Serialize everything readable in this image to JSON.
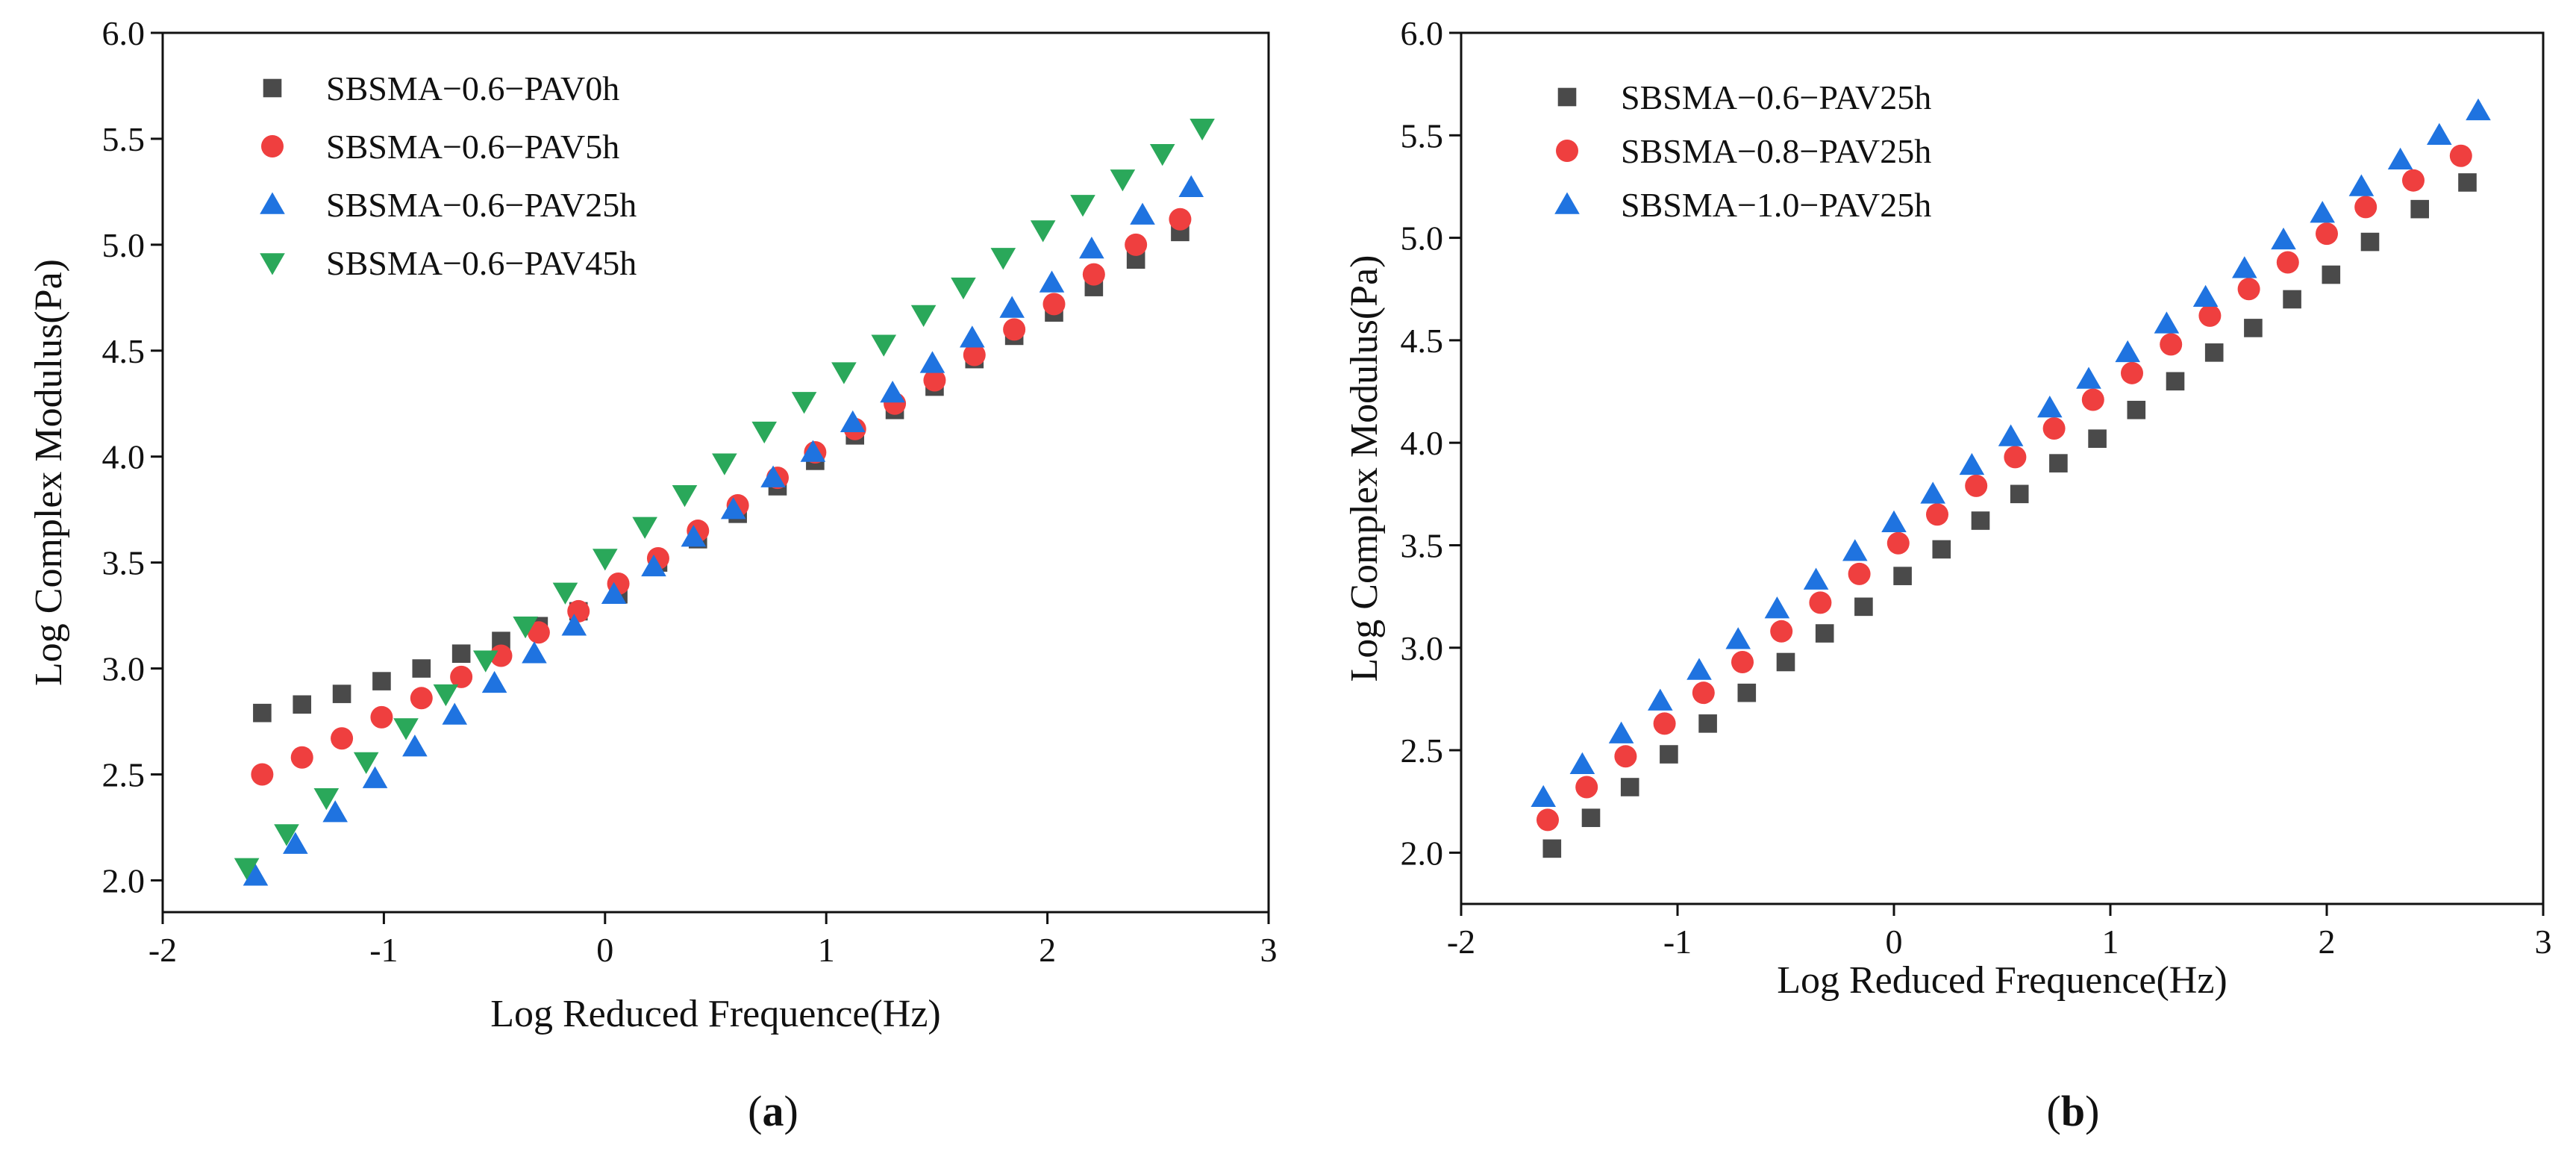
{
  "chart_data": [
    {
      "type": "scatter",
      "panel": "(a)",
      "panel_letter": "a",
      "xlabel": "Log Reduced Frequence(Hz)",
      "ylabel": "Log Complex Modulus(Pa)",
      "xlim": [
        -2,
        3
      ],
      "ylim": [
        1.85,
        6.0
      ],
      "xticks": [
        -2,
        -1,
        0,
        1,
        2,
        3
      ],
      "xtick_labels": [
        "-2",
        "-1",
        "0",
        "1",
        "2",
        "3"
      ],
      "yticks": [
        2.0,
        2.5,
        3.0,
        3.5,
        4.0,
        4.5,
        5.0,
        5.5,
        6.0
      ],
      "ytick_labels": [
        "2.0",
        "2.5",
        "3.0",
        "3.5",
        "4.0",
        "4.5",
        "5.0",
        "5.5",
        "6.0"
      ],
      "legend_position": "top-left",
      "series": [
        {
          "name": "SBSMA−0.6−PAV0h",
          "marker": "square",
          "color": "#4a4a4a",
          "x": [
            -1.55,
            -1.37,
            -1.19,
            -1.01,
            -0.83,
            -0.65,
            -0.47,
            -0.3,
            -0.12,
            0.06,
            0.24,
            0.42,
            0.6,
            0.78,
            0.95,
            1.13,
            1.31,
            1.49,
            1.67,
            1.85,
            2.03,
            2.21,
            2.4,
            2.6
          ],
          "y": [
            2.79,
            2.83,
            2.88,
            2.94,
            3.0,
            3.07,
            3.13,
            3.2,
            3.27,
            3.35,
            3.5,
            3.61,
            3.73,
            3.86,
            3.98,
            4.1,
            4.22,
            4.33,
            4.46,
            4.57,
            4.68,
            4.8,
            4.93,
            5.06
          ]
        },
        {
          "name": "SBSMA−0.6−PAV5h",
          "marker": "circle",
          "color": "#ef3f3f",
          "x": [
            -1.55,
            -1.37,
            -1.19,
            -1.01,
            -0.83,
            -0.65,
            -0.47,
            -0.3,
            -0.12,
            0.06,
            0.24,
            0.42,
            0.6,
            0.78,
            0.95,
            1.13,
            1.31,
            1.49,
            1.67,
            1.85,
            2.03,
            2.21,
            2.4,
            2.6
          ],
          "y": [
            2.5,
            2.58,
            2.67,
            2.77,
            2.86,
            2.96,
            3.06,
            3.17,
            3.27,
            3.4,
            3.52,
            3.65,
            3.77,
            3.9,
            4.02,
            4.13,
            4.25,
            4.36,
            4.48,
            4.6,
            4.72,
            4.86,
            5.0,
            5.12
          ]
        },
        {
          "name": "SBSMA−0.6−PAV25h",
          "marker": "triangle-up",
          "color": "#1f73e0",
          "x": [
            -1.58,
            -1.4,
            -1.22,
            -1.04,
            -0.86,
            -0.68,
            -0.5,
            -0.32,
            -0.14,
            0.04,
            0.22,
            0.4,
            0.58,
            0.76,
            0.94,
            1.12,
            1.3,
            1.48,
            1.66,
            1.84,
            2.02,
            2.2,
            2.43,
            2.65
          ],
          "y": [
            2.02,
            2.17,
            2.32,
            2.48,
            2.63,
            2.78,
            2.93,
            3.07,
            3.2,
            3.35,
            3.48,
            3.62,
            3.75,
            3.9,
            4.02,
            4.16,
            4.3,
            4.44,
            4.56,
            4.7,
            4.82,
            4.98,
            5.14,
            5.27
          ]
        },
        {
          "name": "SBSMA−0.6−PAV45h",
          "marker": "triangle-down",
          "color": "#2aa85a",
          "x": [
            -1.62,
            -1.44,
            -1.26,
            -1.08,
            -0.9,
            -0.72,
            -0.54,
            -0.36,
            -0.18,
            0.0,
            0.18,
            0.36,
            0.54,
            0.72,
            0.9,
            1.08,
            1.26,
            1.44,
            1.62,
            1.8,
            1.98,
            2.16,
            2.34,
            2.52,
            2.7
          ],
          "y": [
            2.06,
            2.22,
            2.39,
            2.56,
            2.72,
            2.88,
            3.04,
            3.2,
            3.36,
            3.52,
            3.67,
            3.82,
            3.97,
            4.12,
            4.26,
            4.4,
            4.53,
            4.67,
            4.8,
            4.94,
            5.07,
            5.19,
            5.31,
            5.43,
            5.55
          ]
        }
      ]
    },
    {
      "type": "scatter",
      "panel": "(b)",
      "panel_letter": "b",
      "xlabel": "Log Reduced Frequence(Hz)",
      "ylabel": "Log Complex Modulus(Pa)",
      "xlim": [
        -2,
        3
      ],
      "ylim": [
        1.75,
        6.0
      ],
      "xticks": [
        -2,
        -1,
        0,
        1,
        2,
        3
      ],
      "xtick_labels": [
        "-2",
        "-1",
        "0",
        "1",
        "2",
        "3"
      ],
      "yticks": [
        2.0,
        2.5,
        3.0,
        3.5,
        4.0,
        4.5,
        5.0,
        5.5,
        6.0
      ],
      "ytick_labels": [
        "2.0",
        "2.5",
        "3.0",
        "3.5",
        "4.0",
        "4.5",
        "5.0",
        "5.5",
        "6.0"
      ],
      "legend_position": "top-left",
      "series": [
        {
          "name": "SBSMA−0.6−PAV25h",
          "marker": "square",
          "color": "#4a4a4a",
          "x": [
            -1.58,
            -1.4,
            -1.22,
            -1.04,
            -0.86,
            -0.68,
            -0.5,
            -0.32,
            -0.14,
            0.04,
            0.22,
            0.4,
            0.58,
            0.76,
            0.94,
            1.12,
            1.3,
            1.48,
            1.66,
            1.84,
            2.02,
            2.2,
            2.43,
            2.65
          ],
          "y": [
            2.02,
            2.17,
            2.32,
            2.48,
            2.63,
            2.78,
            2.93,
            3.07,
            3.2,
            3.35,
            3.48,
            3.62,
            3.75,
            3.9,
            4.02,
            4.16,
            4.3,
            4.44,
            4.56,
            4.7,
            4.82,
            4.98,
            5.14,
            5.27
          ]
        },
        {
          "name": "SBSMA−0.8−PAV25h",
          "marker": "circle",
          "color": "#ef3f3f",
          "x": [
            -1.6,
            -1.42,
            -1.24,
            -1.06,
            -0.88,
            -0.7,
            -0.52,
            -0.34,
            -0.16,
            0.02,
            0.2,
            0.38,
            0.56,
            0.74,
            0.92,
            1.1,
            1.28,
            1.46,
            1.64,
            1.82,
            2.0,
            2.18,
            2.4,
            2.62
          ],
          "y": [
            2.16,
            2.32,
            2.47,
            2.63,
            2.78,
            2.93,
            3.08,
            3.22,
            3.36,
            3.51,
            3.65,
            3.79,
            3.93,
            4.07,
            4.21,
            4.34,
            4.48,
            4.62,
            4.75,
            4.88,
            5.02,
            5.15,
            5.28,
            5.4
          ]
        },
        {
          "name": "SBSMA−1.0−PAV25h",
          "marker": "triangle-up",
          "color": "#1f73e0",
          "x": [
            -1.62,
            -1.44,
            -1.26,
            -1.08,
            -0.9,
            -0.72,
            -0.54,
            -0.36,
            -0.18,
            0.0,
            0.18,
            0.36,
            0.54,
            0.72,
            0.9,
            1.08,
            1.26,
            1.44,
            1.62,
            1.8,
            1.98,
            2.16,
            2.34,
            2.52,
            2.7
          ],
          "y": [
            2.27,
            2.43,
            2.58,
            2.74,
            2.89,
            3.04,
            3.19,
            3.33,
            3.47,
            3.61,
            3.75,
            3.89,
            4.03,
            4.17,
            4.31,
            4.44,
            4.58,
            4.71,
            4.85,
            4.99,
            5.12,
            5.25,
            5.38,
            5.5,
            5.62
          ]
        }
      ]
    }
  ]
}
